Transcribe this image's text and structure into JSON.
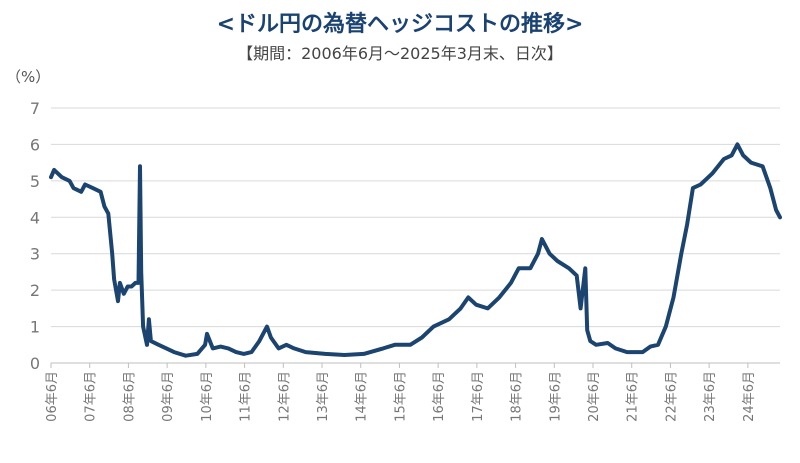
{
  "chart_data": {
    "type": "line",
    "title": "<ドル円の為替ヘッジコストの推移>",
    "subtitle": "【期間：2006年6月～2025年3月末、日次】",
    "ylabel": "（%）",
    "xlabel": "",
    "ylim": [
      0,
      7
    ],
    "yticks": [
      "0",
      "1",
      "2",
      "3",
      "4",
      "5",
      "6",
      "7"
    ],
    "xlim": [
      2006.42,
      2025.25
    ],
    "xtick_positions": [
      2006.42,
      2007.42,
      2008.42,
      2009.42,
      2010.42,
      2011.42,
      2012.42,
      2013.42,
      2014.42,
      2015.42,
      2016.42,
      2017.42,
      2018.42,
      2019.42,
      2020.42,
      2021.42,
      2022.42,
      2023.42,
      2024.42
    ],
    "xticks": [
      "06年6月",
      "07年6月",
      "08年6月",
      "09年6月",
      "10年6月",
      "11年6月",
      "12年6月",
      "13年6月",
      "14年6月",
      "15年6月",
      "16年6月",
      "17年6月",
      "18年6月",
      "19年6月",
      "20年6月",
      "21年6月",
      "22年6月",
      "23年6月",
      "24年6月"
    ],
    "grid": true,
    "colors": {
      "line": "#1c4470",
      "grid": "#d9d9d9",
      "title": "#1a4272"
    },
    "series": [
      {
        "name": "ドル円為替ヘッジコスト",
        "x": [
          2006.42,
          2006.5,
          2006.7,
          2006.9,
          2007.0,
          2007.2,
          2007.3,
          2007.5,
          2007.7,
          2007.8,
          2007.9,
          2008.0,
          2008.05,
          2008.15,
          2008.2,
          2008.3,
          2008.4,
          2008.5,
          2008.6,
          2008.68,
          2008.72,
          2008.75,
          2008.8,
          2008.9,
          2008.95,
          2009.0,
          2009.2,
          2009.4,
          2009.6,
          2009.9,
          2010.2,
          2010.4,
          2010.45,
          2010.6,
          2010.8,
          2011.0,
          2011.2,
          2011.4,
          2011.6,
          2011.8,
          2012.0,
          2012.1,
          2012.3,
          2012.5,
          2012.7,
          2013.0,
          2013.5,
          2014.0,
          2014.5,
          2015.0,
          2015.3,
          2015.7,
          2016.0,
          2016.3,
          2016.7,
          2017.0,
          2017.2,
          2017.4,
          2017.7,
          2018.0,
          2018.3,
          2018.5,
          2018.8,
          2019.0,
          2019.1,
          2019.3,
          2019.5,
          2019.8,
          2020.0,
          2020.1,
          2020.22,
          2020.27,
          2020.35,
          2020.5,
          2020.8,
          2021.0,
          2021.3,
          2021.7,
          2021.9,
          2022.1,
          2022.3,
          2022.5,
          2022.7,
          2022.85,
          2023.0,
          2023.2,
          2023.5,
          2023.8,
          2024.0,
          2024.15,
          2024.3,
          2024.5,
          2024.8,
          2025.0,
          2025.15,
          2025.25
        ],
        "y": [
          5.1,
          5.3,
          5.1,
          5.0,
          4.8,
          4.7,
          4.9,
          4.8,
          4.7,
          4.3,
          4.1,
          3.0,
          2.3,
          1.7,
          2.2,
          1.9,
          2.1,
          2.1,
          2.2,
          2.2,
          5.4,
          2.5,
          1.0,
          0.5,
          1.2,
          0.6,
          0.5,
          0.4,
          0.3,
          0.2,
          0.25,
          0.5,
          0.8,
          0.4,
          0.45,
          0.4,
          0.3,
          0.25,
          0.3,
          0.6,
          1.0,
          0.7,
          0.4,
          0.5,
          0.4,
          0.3,
          0.25,
          0.22,
          0.25,
          0.4,
          0.5,
          0.5,
          0.7,
          1.0,
          1.2,
          1.5,
          1.8,
          1.6,
          1.5,
          1.8,
          2.2,
          2.6,
          2.6,
          3.0,
          3.4,
          3.0,
          2.8,
          2.6,
          2.4,
          1.5,
          2.6,
          0.9,
          0.6,
          0.5,
          0.55,
          0.4,
          0.3,
          0.3,
          0.45,
          0.5,
          1.0,
          1.8,
          3.0,
          3.8,
          4.8,
          4.9,
          5.2,
          5.6,
          5.7,
          6.0,
          5.7,
          5.5,
          5.4,
          4.8,
          4.2,
          4.0
        ]
      }
    ]
  }
}
